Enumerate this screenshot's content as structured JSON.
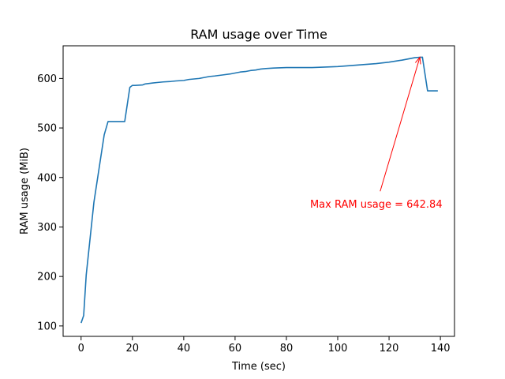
{
  "chart_data": {
    "type": "line",
    "title": "RAM usage over Time",
    "xlabel": "Time (sec)",
    "ylabel": "RAM usage (MiB)",
    "xlim": [
      -7,
      145.5
    ],
    "ylim": [
      79,
      666
    ],
    "xticks": [
      0,
      20,
      40,
      60,
      80,
      100,
      120,
      140
    ],
    "yticks": [
      100,
      200,
      300,
      400,
      500,
      600
    ],
    "grid": false,
    "series": [
      {
        "color": "#1f77b4",
        "x": [
          0,
          1,
          2,
          5,
          9,
          10.5,
          12,
          17,
          19,
          20,
          21,
          24,
          25,
          28,
          30,
          32,
          35,
          37,
          40,
          41,
          42,
          44,
          46,
          48,
          50,
          52,
          55,
          58,
          60,
          62,
          64,
          66,
          68,
          70,
          72,
          75,
          80,
          85,
          90,
          95,
          100,
          105,
          110,
          115,
          120,
          125,
          128,
          130,
          132,
          133,
          135,
          139
        ],
        "y": [
          106,
          121,
          203,
          350,
          486,
          513,
          513,
          513,
          582,
          586,
          586,
          587,
          589,
          591,
          592,
          593,
          594,
          595,
          596,
          597,
          598,
          599,
          600,
          602,
          604,
          605,
          607,
          609,
          611,
          613,
          614,
          616,
          617,
          619,
          620,
          621,
          622,
          622,
          622,
          623,
          624,
          626,
          628,
          630,
          633,
          637,
          640,
          642,
          642.84,
          643,
          575,
          575
        ]
      }
    ],
    "annotations": [
      {
        "text": "Max RAM usage = 642.84",
        "color": "#ff0000",
        "point": [
          132,
          642.84
        ],
        "text_pos": [
          115,
          345
        ]
      }
    ]
  }
}
